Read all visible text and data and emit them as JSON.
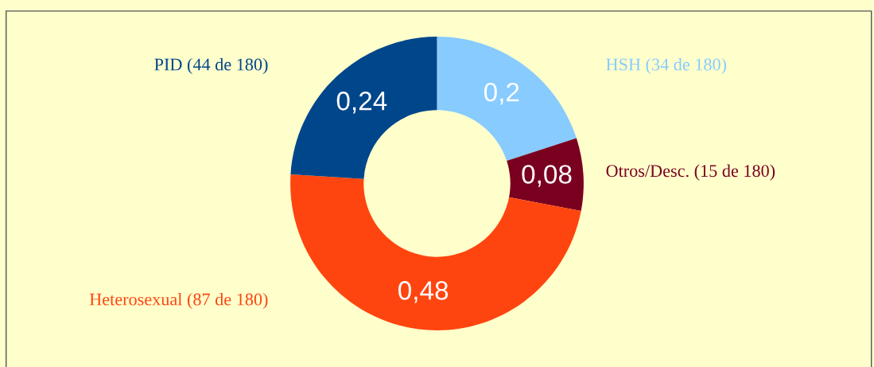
{
  "chart_data": {
    "type": "donut",
    "categories": [
      "HSH (34 de 180)",
      "Otros/Desc. (15 de 180)",
      "Heterosexual (87 de 180)",
      "PID (44 de 180)"
    ],
    "values": [
      0.2,
      0.08,
      0.48,
      0.24
    ],
    "colors": [
      "#87cbff",
      "#7a0020",
      "#ff450f",
      "#00468b"
    ],
    "value_labels": [
      "0,2",
      "0,08",
      "0,48",
      "0,24"
    ],
    "legend": false
  }
}
